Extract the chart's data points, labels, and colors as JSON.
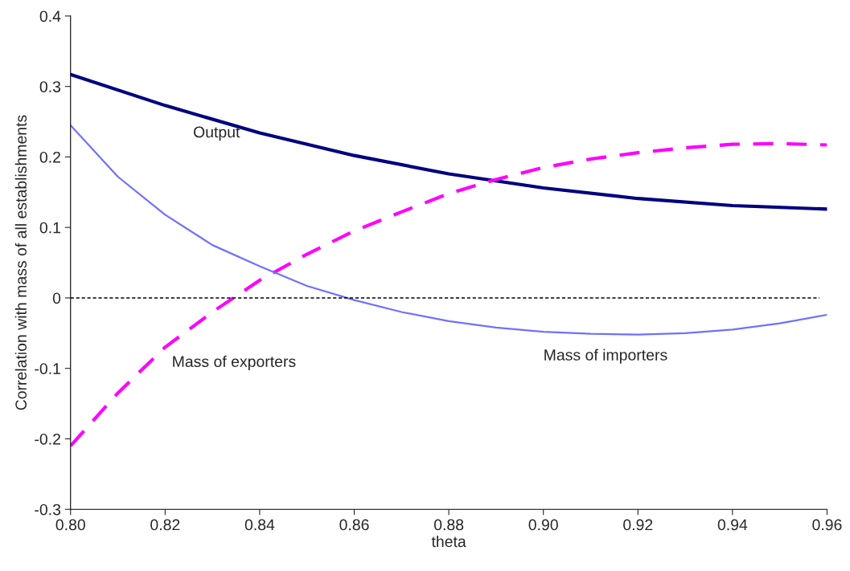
{
  "chart_data": {
    "type": "line",
    "xlabel": "theta",
    "ylabel": "Correlation with mass of all establishments",
    "xlim": [
      0.8,
      0.96
    ],
    "ylim": [
      -0.3,
      0.4
    ],
    "xticks": [
      {
        "value": 0.8,
        "label": "0.80"
      },
      {
        "value": 0.82,
        "label": "0.82"
      },
      {
        "value": 0.84,
        "label": "0.84"
      },
      {
        "value": 0.86,
        "label": "0.86"
      },
      {
        "value": 0.88,
        "label": "0.88"
      },
      {
        "value": 0.9,
        "label": "0.90"
      },
      {
        "value": 0.92,
        "label": "0.92"
      },
      {
        "value": 0.94,
        "label": "0.94"
      },
      {
        "value": 0.96,
        "label": "0.96"
      }
    ],
    "yticks": [
      -0.3,
      -0.2,
      -0.1,
      0,
      0.1,
      0.2,
      0.3,
      0.4
    ],
    "grid": false,
    "legend": false,
    "marker": "none",
    "ref_lines": [
      {
        "axis": "y",
        "value": 0,
        "color": "#000000",
        "line_style": "dotted"
      }
    ],
    "series": [
      {
        "name": "Output",
        "color": "#000080",
        "line_style": "solid",
        "x": [
          0.8,
          0.82,
          0.84,
          0.86,
          0.88,
          0.9,
          0.92,
          0.94,
          0.96
        ],
        "values": [
          0.317,
          0.273,
          0.234,
          0.202,
          0.176,
          0.156,
          0.141,
          0.131,
          0.126
        ]
      },
      {
        "name": "Mass of exporters",
        "color": "#ff00ff",
        "line_style": "dashed",
        "x": [
          0.8,
          0.81,
          0.82,
          0.83,
          0.84,
          0.85,
          0.86,
          0.87,
          0.88,
          0.89,
          0.9,
          0.91,
          0.92,
          0.93,
          0.94,
          0.95,
          0.96
        ],
        "values": [
          -0.21,
          -0.135,
          -0.07,
          -0.02,
          0.025,
          0.062,
          0.095,
          0.122,
          0.148,
          0.168,
          0.185,
          0.197,
          0.206,
          0.213,
          0.218,
          0.219,
          0.217
        ]
      },
      {
        "name": "Mass of importers",
        "color": "#7070ff",
        "line_style": "solid",
        "x": [
          0.8,
          0.81,
          0.82,
          0.83,
          0.84,
          0.85,
          0.86,
          0.87,
          0.88,
          0.89,
          0.9,
          0.91,
          0.92,
          0.93,
          0.94,
          0.95,
          0.96
        ],
        "values": [
          0.245,
          0.172,
          0.118,
          0.075,
          0.045,
          0.017,
          -0.003,
          -0.02,
          -0.033,
          -0.042,
          -0.048,
          -0.051,
          -0.052,
          -0.05,
          -0.045,
          -0.036,
          -0.024
        ]
      }
    ]
  }
}
